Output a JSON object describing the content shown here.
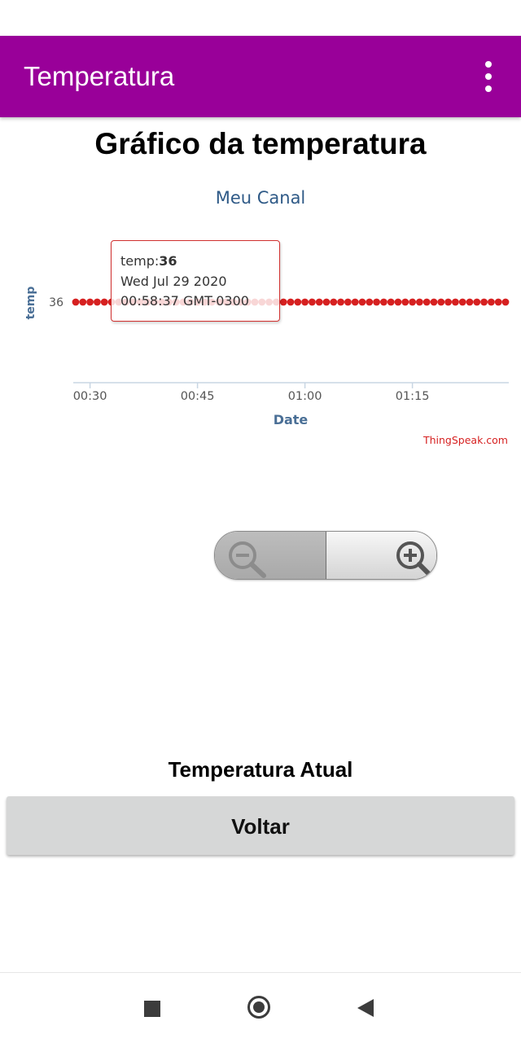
{
  "app_bar": {
    "title": "Temperatura",
    "background_color": "#990099",
    "menu_icon": "more-vert-icon"
  },
  "page": {
    "title": "Gráfico da temperatura",
    "current_label": "Temperatura Atual",
    "back_button_label": "Voltar"
  },
  "chart_data": {
    "type": "scatter",
    "title": "Meu Canal",
    "xlabel": "Date",
    "ylabel": "temp",
    "x_tick_labels": [
      "00:30",
      "00:45",
      "01:00",
      "01:15"
    ],
    "y_tick_labels": [
      "36"
    ],
    "x_range": [
      "00:28",
      "01:28"
    ],
    "series": [
      {
        "name": "temp",
        "color": "#d62020",
        "points": [
          [
            "00:28",
            36
          ],
          [
            "00:29",
            36
          ],
          [
            "00:30",
            36
          ],
          [
            "00:31",
            36
          ],
          [
            "00:32",
            36
          ],
          [
            "00:33",
            36
          ],
          [
            "00:34",
            36
          ],
          [
            "00:35",
            36
          ],
          [
            "00:36",
            36
          ],
          [
            "00:37",
            36
          ],
          [
            "00:38",
            36
          ],
          [
            "00:39",
            36
          ],
          [
            "00:40",
            36
          ],
          [
            "00:41",
            36
          ],
          [
            "00:42",
            36
          ],
          [
            "00:43",
            36
          ],
          [
            "00:44",
            36
          ],
          [
            "00:45",
            36
          ],
          [
            "00:46",
            36
          ],
          [
            "00:47",
            36
          ],
          [
            "00:48",
            36
          ],
          [
            "00:49",
            36
          ],
          [
            "00:50",
            36
          ],
          [
            "00:51",
            36
          ],
          [
            "00:52",
            36
          ],
          [
            "00:53",
            36
          ],
          [
            "00:54",
            36
          ],
          [
            "00:55",
            36
          ],
          [
            "00:56",
            36
          ],
          [
            "00:57",
            36
          ],
          [
            "00:58",
            36
          ],
          [
            "00:59",
            36
          ],
          [
            "01:00",
            36
          ],
          [
            "01:01",
            36
          ],
          [
            "01:02",
            36
          ],
          [
            "01:03",
            36
          ],
          [
            "01:04",
            36
          ],
          [
            "01:05",
            36
          ],
          [
            "01:06",
            36
          ],
          [
            "01:07",
            36
          ],
          [
            "01:08",
            36
          ],
          [
            "01:09",
            36
          ],
          [
            "01:10",
            36
          ],
          [
            "01:11",
            36
          ],
          [
            "01:12",
            36
          ],
          [
            "01:13",
            36
          ],
          [
            "01:14",
            36
          ],
          [
            "01:15",
            36
          ],
          [
            "01:16",
            36
          ],
          [
            "01:17",
            36
          ],
          [
            "01:18",
            36
          ],
          [
            "01:19",
            36
          ],
          [
            "01:20",
            36
          ],
          [
            "01:21",
            36
          ],
          [
            "01:22",
            36
          ],
          [
            "01:23",
            36
          ],
          [
            "01:24",
            36
          ],
          [
            "01:25",
            36
          ],
          [
            "01:26",
            36
          ],
          [
            "01:27",
            36
          ],
          [
            "01:28",
            36
          ]
        ]
      }
    ],
    "tooltip": {
      "series_label": "temp:",
      "value": "36",
      "date": "Wed Jul 29 2020",
      "time": "00:58:37 GMT-0300"
    },
    "credit": "ThingSpeak.com",
    "title_color": "#2f5a87",
    "credit_color": "#d62020",
    "grid": false
  },
  "zoom": {
    "zoom_out_icon": "zoom-out-icon",
    "zoom_in_icon": "zoom-in-icon"
  },
  "nav_bar": {
    "recents_icon": "recents-square-icon",
    "home_icon": "home-circle-icon",
    "back_icon": "back-triangle-icon"
  }
}
